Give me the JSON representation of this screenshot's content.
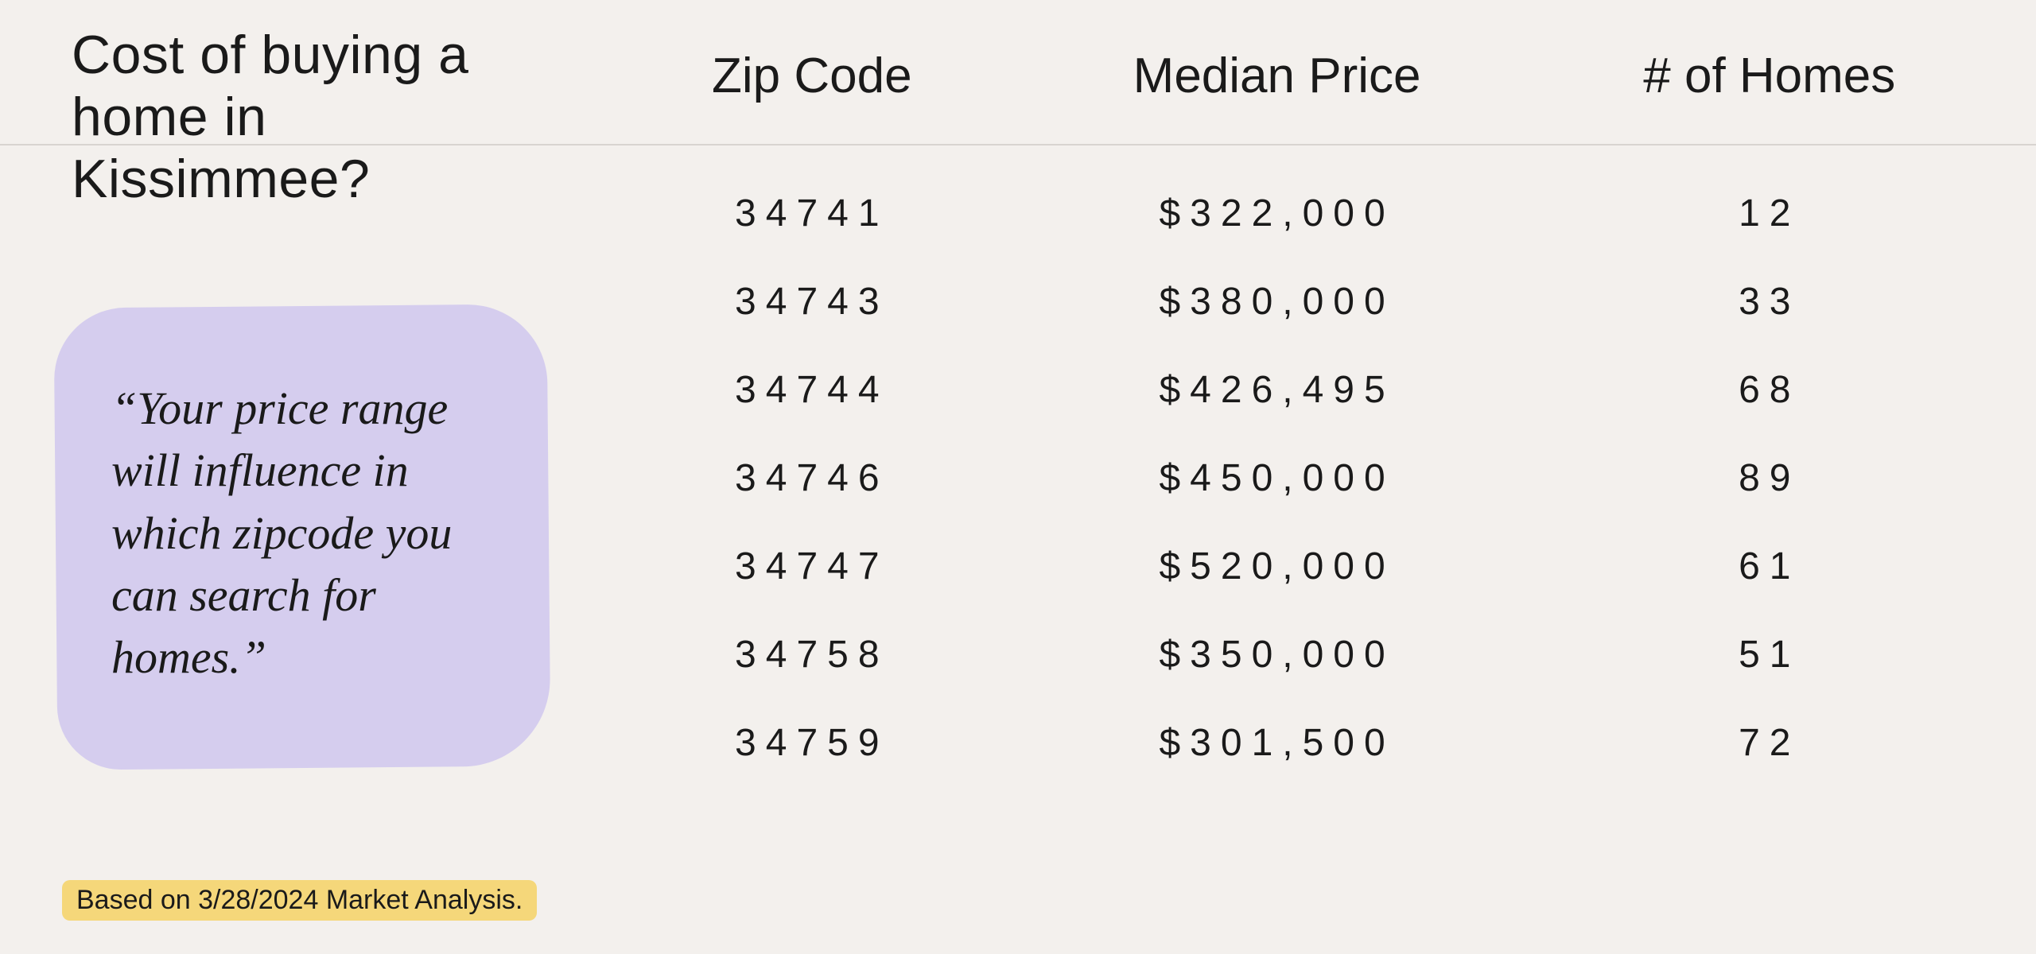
{
  "title": "Cost of buying a home in Kissimmee?",
  "quote": "“Your price range will influence in which zipcode you can search for homes.”",
  "footnote": "Based on 3/28/2024 Market Analysis.",
  "table": {
    "type": "table",
    "columns": [
      "Zip Code",
      "Median Price",
      "# of Homes"
    ],
    "rows": [
      {
        "zip": "34741",
        "price": "$322,000",
        "homes": "12"
      },
      {
        "zip": "34743",
        "price": "$380,000",
        "homes": "33"
      },
      {
        "zip": "34744",
        "price": "$426,495",
        "homes": "68"
      },
      {
        "zip": "34746",
        "price": "$450,000",
        "homes": "89"
      },
      {
        "zip": "34747",
        "price": "$520,000",
        "homes": "61"
      },
      {
        "zip": "34758",
        "price": "$350,000",
        "homes": "51"
      },
      {
        "zip": "34759",
        "price": "$301,500",
        "homes": "72"
      }
    ],
    "styling": {
      "background_color": "#f3f0ed",
      "text_color": "#1a1a1a",
      "divider_color": "#d8d4d0",
      "quote_bubble_color": "#d5cdee",
      "footnote_highlight_color": "#f5d77a",
      "title_fontsize": 68,
      "header_fontsize": 62,
      "cell_fontsize": 48,
      "cell_letter_spacing": 12,
      "quote_fontsize": 58,
      "footnote_fontsize": 34,
      "column_widths_pct": [
        28,
        40,
        32
      ]
    }
  }
}
